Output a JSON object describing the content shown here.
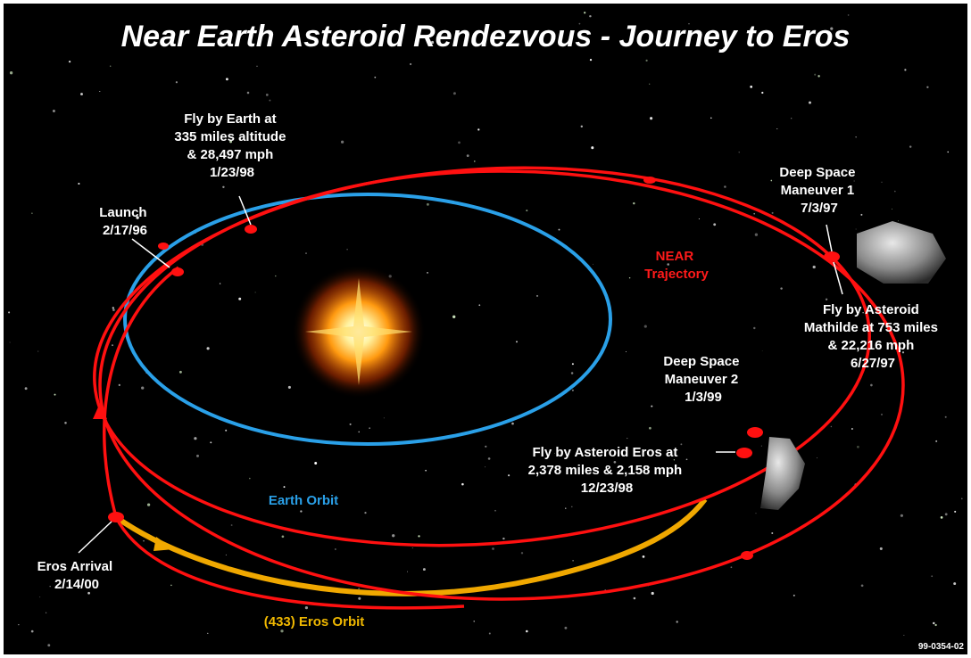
{
  "title": "Near Earth Asteroid Rendezvous - Journey to Eros",
  "labels": {
    "earth_flyby": [
      "Fly by Earth at",
      "335 miles altitude",
      "& 28,497 mph",
      "1/23/98"
    ],
    "launch": [
      "Launch",
      "2/17/96"
    ],
    "dsm1": [
      "Deep Space",
      "Maneuver 1",
      "7/3/97"
    ],
    "near_trajectory": [
      "NEAR",
      "Trajectory"
    ],
    "mathilde_flyby": [
      "Fly by Asteroid",
      "Mathilde at 753 miles",
      "& 22,216 mph",
      "6/27/97"
    ],
    "dsm2": [
      "Deep Space",
      "Maneuver 2",
      "1/3/99"
    ],
    "eros_flyby": [
      "Fly by Asteroid Eros at",
      "2,378 miles & 2,158 mph",
      "12/23/98"
    ],
    "earth_orbit": "Earth Orbit",
    "eros_arrival": [
      "Eros Arrival",
      "2/14/00"
    ],
    "eros_orbit": "(433) Eros Orbit"
  },
  "image_id": "99-0354-02"
}
